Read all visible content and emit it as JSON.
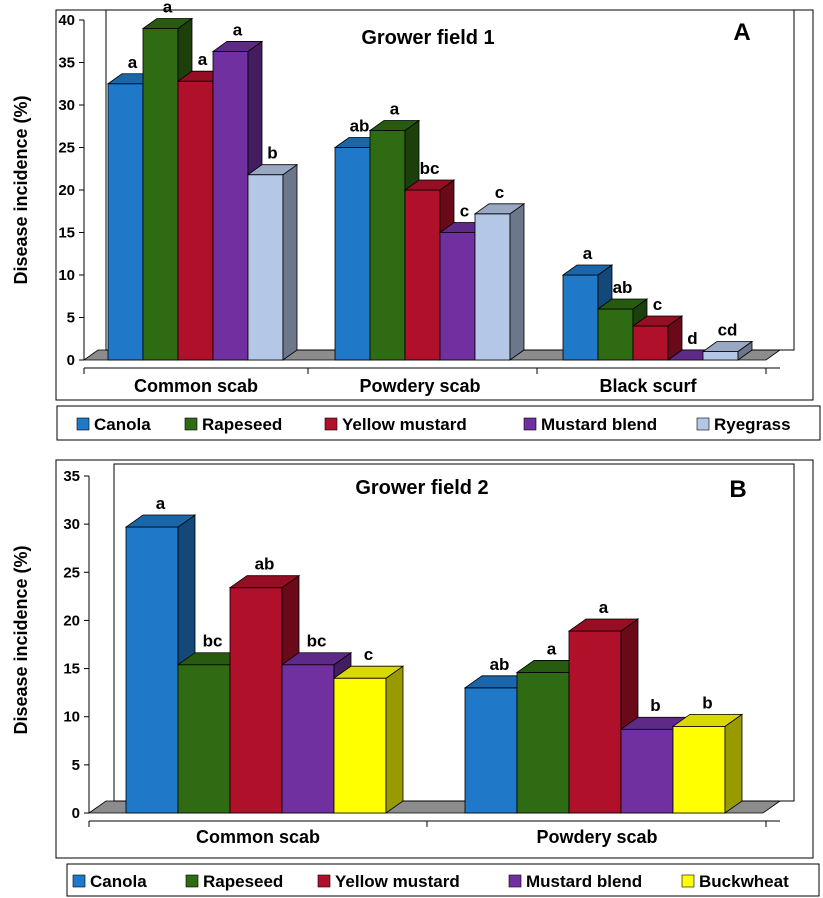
{
  "chart_data": [
    {
      "type": "bar",
      "panel": "A",
      "title": "Grower field 1",
      "ylabel": "Disease incidence (%)",
      "ylim": [
        0,
        40
      ],
      "yticks": [
        0,
        5,
        10,
        15,
        20,
        25,
        30,
        35,
        40
      ],
      "categories": [
        "Common scab",
        "Powdery scab",
        "Black scurf"
      ],
      "series": [
        {
          "name": "Canola",
          "color": "#1F78C8",
          "values": [
            32.5,
            25,
            10
          ],
          "letters": [
            "a",
            "ab",
            "a"
          ]
        },
        {
          "name": "Rapeseed",
          "color": "#2E6B12",
          "values": [
            39,
            27,
            6
          ],
          "letters": [
            "a",
            "a",
            "ab"
          ]
        },
        {
          "name": "Yellow mustard",
          "color": "#B0102A",
          "values": [
            32.8,
            20,
            4
          ],
          "letters": [
            "a",
            "bc",
            "c"
          ]
        },
        {
          "name": "Mustard blend",
          "color": "#7030A0",
          "values": [
            36.3,
            15,
            0
          ],
          "letters": [
            "a",
            "c",
            "d"
          ]
        },
        {
          "name": "Ryegrass",
          "color": "#B4C7E7",
          "values": [
            21.8,
            17.2,
            1
          ],
          "letters": [
            "b",
            "c",
            "cd"
          ]
        }
      ],
      "legend_position": "bottom"
    },
    {
      "type": "bar",
      "panel": "B",
      "title": "Grower field 2",
      "ylabel": "Disease incidence (%)",
      "ylim": [
        0,
        35
      ],
      "yticks": [
        0,
        5,
        10,
        15,
        20,
        25,
        30,
        35
      ],
      "categories": [
        "Common scab",
        "Powdery scab"
      ],
      "series": [
        {
          "name": "Canola",
          "color": "#1F78C8",
          "values": [
            29.7,
            13
          ],
          "letters": [
            "a",
            "ab"
          ]
        },
        {
          "name": "Rapeseed",
          "color": "#2E6B12",
          "values": [
            15.4,
            14.6
          ],
          "letters": [
            "bc",
            "a"
          ]
        },
        {
          "name": "Yellow mustard",
          "color": "#B0102A",
          "values": [
            23.4,
            18.9
          ],
          "letters": [
            "ab",
            "a"
          ]
        },
        {
          "name": "Mustard blend",
          "color": "#7030A0",
          "values": [
            15.4,
            8.7
          ],
          "letters": [
            "bc",
            "b"
          ]
        },
        {
          "name": "Buckwheat",
          "color": "#FFFF00",
          "values": [
            14,
            9
          ],
          "letters": [
            "c",
            "b"
          ]
        }
      ],
      "legend_position": "bottom"
    }
  ]
}
